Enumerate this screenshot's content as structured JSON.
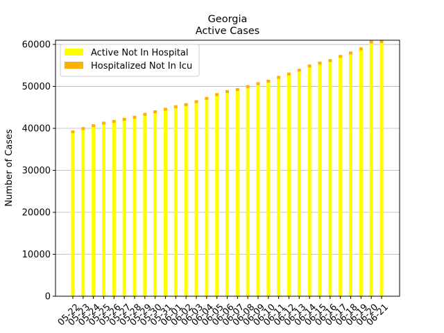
{
  "chart_data": {
    "type": "bar",
    "stacked": true,
    "title": "Georgia",
    "subtitle": "Active Cases",
    "xlabel": "",
    "ylabel": "Number of Cases",
    "ylim": [
      0,
      61000
    ],
    "yticks": [
      0,
      10000,
      20000,
      30000,
      40000,
      50000,
      60000
    ],
    "grid": "y",
    "legend_position": "top-left",
    "categories": [
      "05-22",
      "05-23",
      "05-24",
      "05-25",
      "05-26",
      "05-27",
      "05-28",
      "05-29",
      "05-30",
      "05-31",
      "06-01",
      "06-02",
      "06-03",
      "06-04",
      "06-05",
      "06-06",
      "06-07",
      "06-08",
      "06-09",
      "06-10",
      "06-11",
      "06-12",
      "06-13",
      "06-14",
      "06-15",
      "06-16",
      "06-17",
      "06-18",
      "06-19",
      "06-20",
      "06-21"
    ],
    "series": [
      {
        "name": "Active Not In Hospital",
        "color": "#ffff00",
        "values": [
          38800,
          39600,
          40300,
          40900,
          41300,
          41800,
          42300,
          43000,
          43600,
          44200,
          44800,
          45300,
          46000,
          46800,
          47700,
          48400,
          48900,
          49600,
          50300,
          50900,
          51800,
          52600,
          53500,
          54500,
          55200,
          55800,
          56800,
          57600,
          58600,
          60200,
          60300
        ]
      },
      {
        "name": "Hospitalized Not In Icu",
        "color": "#ffb000",
        "values": [
          700,
          700,
          700,
          700,
          700,
          700,
          700,
          700,
          700,
          700,
          700,
          700,
          700,
          700,
          700,
          700,
          700,
          700,
          700,
          700,
          700,
          700,
          700,
          700,
          700,
          700,
          700,
          700,
          700,
          700,
          700
        ]
      }
    ]
  }
}
